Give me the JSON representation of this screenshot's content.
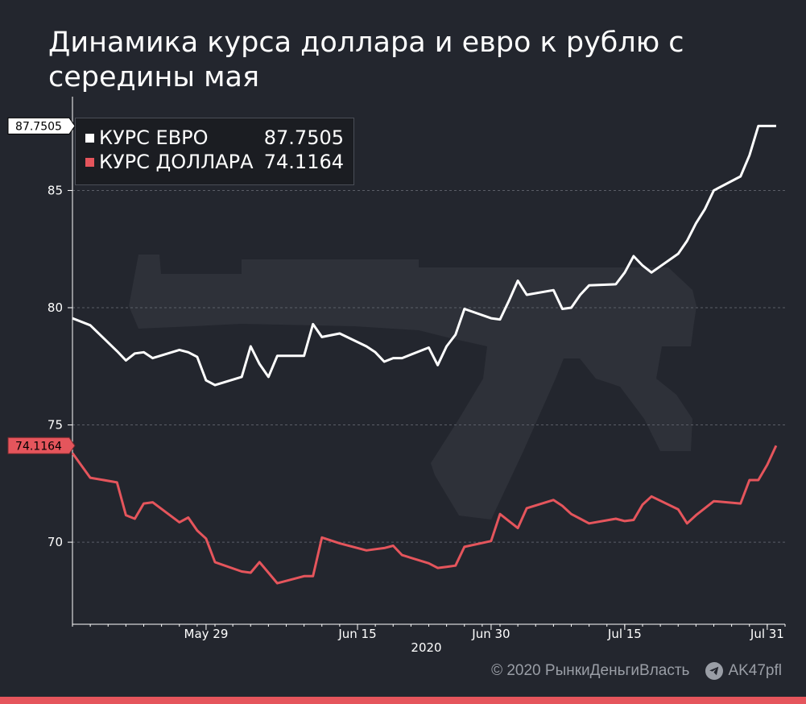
{
  "header": {
    "title": "Динамика курса доллара и евро к рублю с середины мая"
  },
  "colors": {
    "background": "#23262e",
    "euro": "#ffffff",
    "dollar": "#e5555c",
    "grid": "#5a5e67",
    "axis_text": "#ffffff",
    "watermark": "#2e3139"
  },
  "footer": {
    "copyright": "© 2020  РынкиДеньгиВласть",
    "channel": "AK47pfl",
    "icon": "telegram-icon"
  },
  "chart_data": {
    "type": "line",
    "title": "Динамика курса доллара и евро к рублю с середины мая",
    "xlabel": "2020",
    "ylabel": "",
    "x_ticks": [
      {
        "date": "2020-05-29",
        "label": "May 29"
      },
      {
        "date": "2020-06-15",
        "label": "Jun 15"
      },
      {
        "date": "2020-06-30",
        "label": "Jun 30"
      },
      {
        "date": "2020-07-15",
        "label": "Jul 15"
      },
      {
        "date": "2020-07-31",
        "label": "Jul 31"
      }
    ],
    "xlim": [
      "2020-05-14",
      "2020-08-02"
    ],
    "y_ticks": [
      70,
      75,
      80,
      85
    ],
    "ylim": [
      66.5,
      89
    ],
    "grid": true,
    "legend_position": "top-left",
    "x": [
      "2020-05-14",
      "2020-05-16",
      "2020-05-19",
      "2020-05-20",
      "2020-05-21",
      "2020-05-22",
      "2020-05-23",
      "2020-05-26",
      "2020-05-27",
      "2020-05-28",
      "2020-05-29",
      "2020-05-30",
      "2020-06-02",
      "2020-06-03",
      "2020-06-04",
      "2020-06-05",
      "2020-06-06",
      "2020-06-09",
      "2020-06-10",
      "2020-06-11",
      "2020-06-13",
      "2020-06-16",
      "2020-06-17",
      "2020-06-18",
      "2020-06-19",
      "2020-06-20",
      "2020-06-23",
      "2020-06-24",
      "2020-06-25",
      "2020-06-26",
      "2020-06-27",
      "2020-06-30",
      "2020-07-01",
      "2020-07-02",
      "2020-07-03",
      "2020-07-04",
      "2020-07-07",
      "2020-07-08",
      "2020-07-09",
      "2020-07-10",
      "2020-07-11",
      "2020-07-14",
      "2020-07-15",
      "2020-07-16",
      "2020-07-17",
      "2020-07-18",
      "2020-07-21",
      "2020-07-22",
      "2020-07-23",
      "2020-07-24",
      "2020-07-25",
      "2020-07-28",
      "2020-07-29",
      "2020-07-30",
      "2020-07-31",
      "2020-08-01"
    ],
    "series": [
      {
        "name": "КУРС ЕВРО",
        "last_value": "87.7505",
        "values": [
          79.55,
          79.25,
          78.15,
          77.75,
          78.05,
          78.1,
          77.85,
          78.2,
          78.1,
          77.9,
          76.9,
          76.7,
          77.05,
          78.35,
          77.6,
          77.05,
          77.95,
          77.95,
          79.3,
          78.75,
          78.9,
          78.35,
          78.1,
          77.7,
          77.85,
          77.85,
          78.3,
          77.55,
          78.35,
          78.85,
          79.95,
          79.55,
          79.5,
          80.3,
          81.15,
          80.55,
          80.75,
          79.95,
          80.0,
          80.55,
          80.95,
          81.0,
          81.5,
          82.2,
          81.8,
          81.5,
          82.3,
          82.85,
          83.6,
          84.2,
          85.0,
          85.6,
          86.5,
          87.75,
          87.75,
          87.75
        ]
      },
      {
        "name": "КУРС ДОЛЛАРА",
        "last_value": "74.1164",
        "values": [
          73.8,
          72.75,
          72.55,
          71.15,
          71.0,
          71.65,
          71.7,
          70.85,
          71.05,
          70.5,
          70.15,
          69.15,
          68.75,
          68.7,
          69.15,
          68.7,
          68.25,
          68.55,
          68.55,
          70.2,
          69.95,
          69.65,
          69.7,
          69.75,
          69.85,
          69.45,
          69.1,
          68.9,
          68.95,
          69.0,
          69.8,
          70.05,
          71.2,
          70.9,
          70.6,
          71.45,
          71.8,
          71.55,
          71.2,
          71.0,
          70.8,
          71.0,
          70.9,
          70.95,
          71.6,
          71.95,
          71.4,
          70.8,
          71.15,
          71.45,
          71.75,
          71.65,
          72.65,
          72.65,
          73.3,
          74.1164
        ]
      }
    ]
  }
}
